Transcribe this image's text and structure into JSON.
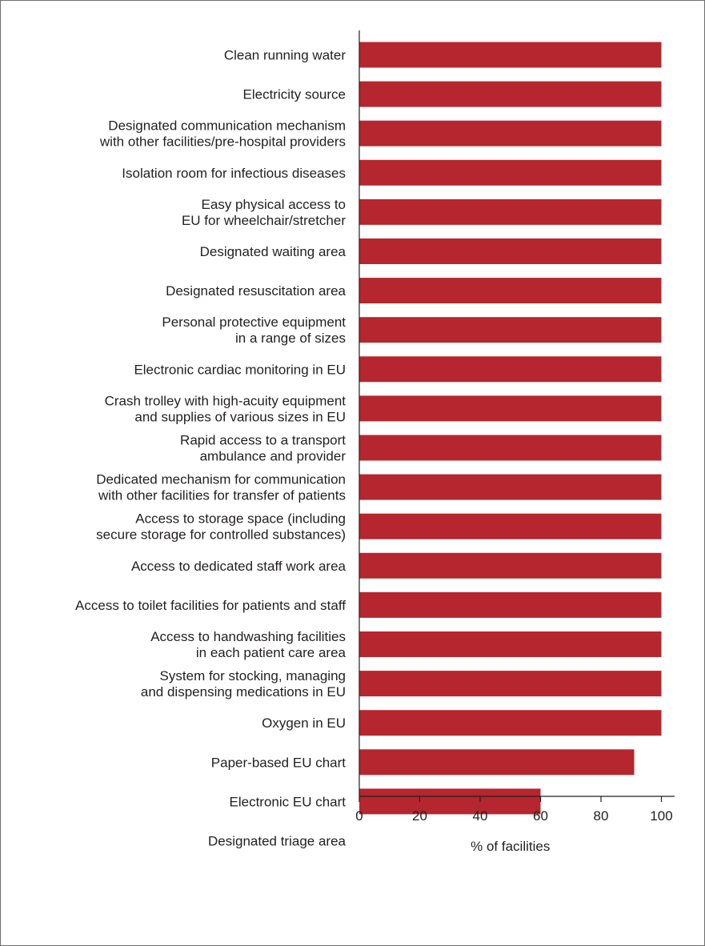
{
  "chart_data": {
    "type": "bar",
    "orientation": "horizontal",
    "categories": [
      [
        "Clean running water"
      ],
      [
        "Electricity source"
      ],
      [
        "Designated communication mechanism",
        "with other facilities/pre-hospital providers"
      ],
      [
        "Isolation room for infectious diseases"
      ],
      [
        "Easy physical access to",
        "EU for wheelchair/stretcher"
      ],
      [
        "Designated waiting area"
      ],
      [
        "Designated resuscitation area"
      ],
      [
        "Personal protective equipment",
        "in a range of sizes"
      ],
      [
        "Electronic cardiac monitoring in EU"
      ],
      [
        "Crash trolley with high-acuity equipment",
        "and supplies of various sizes in EU"
      ],
      [
        "Rapid access to a transport",
        "ambulance and provider"
      ],
      [
        "Dedicated mechanism for communication",
        "with other facilities for transfer of patients"
      ],
      [
        "Access to storage space (including",
        "secure storage for controlled substances)"
      ],
      [
        "Access to dedicated staff work area"
      ],
      [
        "Access to toilet facilities for patients and staff"
      ],
      [
        "Access to handwashing facilities",
        "in each patient care area"
      ],
      [
        "System for stocking, managing",
        "and dispensing medications in EU"
      ],
      [
        "Oxygen in EU"
      ],
      [
        "Paper-based EU chart"
      ],
      [
        "Electronic EU chart"
      ],
      [
        "Designated triage area"
      ]
    ],
    "values": [
      100,
      100,
      100,
      100,
      100,
      100,
      100,
      100,
      100,
      100,
      100,
      100,
      100,
      100,
      100,
      100,
      100,
      100,
      91,
      60,
      0
    ],
    "xlabel": "% of facilities",
    "xlim": [
      0,
      105
    ],
    "xticks": [
      0,
      20,
      40,
      60,
      80,
      100
    ],
    "grid": false,
    "bar_color": "#b5262e",
    "axis_color": "#231f20"
  }
}
